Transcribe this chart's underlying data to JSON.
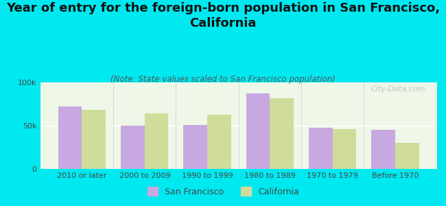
{
  "title": "Year of entry for the foreign-born population in San Francisco,\nCalifornia",
  "subtitle": "(Note: State values scaled to San Francisco population)",
  "categories": [
    "2010 or later",
    "2000 to 2009",
    "1990 to 1999",
    "1980 to 1989",
    "1970 to 1979",
    "Before 1970"
  ],
  "sf_values": [
    72000,
    50000,
    51000,
    87000,
    48000,
    45000
  ],
  "ca_values": [
    68000,
    64000,
    63000,
    82000,
    46000,
    30000
  ],
  "sf_color": "#c8a8e0",
  "ca_color": "#d0dc9a",
  "background_color": "#00e8f0",
  "plot_bg_color": "#eef7e8",
  "ylim": [
    0,
    100000
  ],
  "ytick_labels": [
    "0",
    "50k",
    "100k"
  ],
  "bar_width": 0.38,
  "legend_labels": [
    "San Francisco",
    "California"
  ],
  "watermark": "City-Data.com",
  "title_fontsize": 13,
  "subtitle_fontsize": 8.5,
  "tick_fontsize": 8,
  "legend_fontsize": 9
}
